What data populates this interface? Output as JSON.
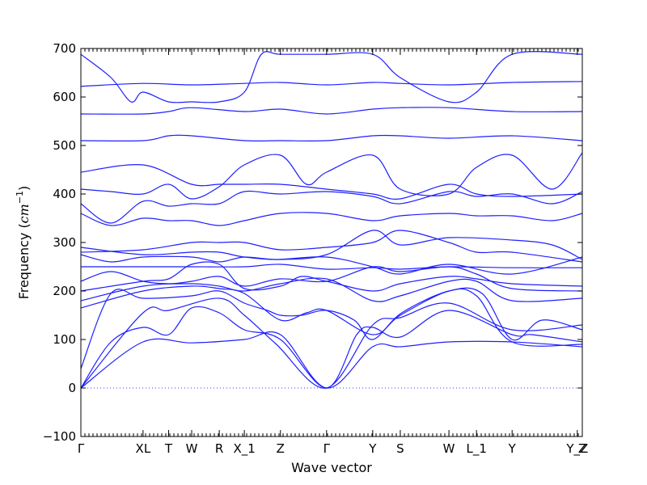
{
  "chart_data": {
    "type": "line",
    "title": "",
    "xlabel": "Wave vector",
    "ylabel": "Frequency ($cm^{-1}$)",
    "ylabel_text": "Frequency (",
    "ylabel_math": "cm",
    "ylabel_sup": "−1",
    "ylabel_close": ")",
    "ylim": [
      -100,
      700
    ],
    "yticks": [
      -100,
      0,
      100,
      200,
      300,
      400,
      500,
      600,
      700
    ],
    "xlim": [
      0,
      1
    ],
    "high_symmetry_points": [
      {
        "label": "Γ",
        "x": 0.0
      },
      {
        "label": "XL",
        "x": 0.124
      },
      {
        "label": "T",
        "x": 0.175
      },
      {
        "label": "W",
        "x": 0.221
      },
      {
        "label": "R",
        "x": 0.276
      },
      {
        "label": "X_1",
        "x": 0.326
      },
      {
        "label": "Z",
        "x": 0.398
      },
      {
        "label": "Γ",
        "x": 0.49
      },
      {
        "label": "Y",
        "x": 0.582
      },
      {
        "label": "S",
        "x": 0.637
      },
      {
        "label": "W",
        "x": 0.734
      },
      {
        "label": "L_1",
        "x": 0.789
      },
      {
        "label": "Y",
        "x": 0.86
      },
      {
        "label": "Y_Z",
        "x": 0.99
      },
      {
        "label": "Z",
        "x": 1.0
      }
    ],
    "grid": false,
    "legend": "none",
    "color": "#1f1fff",
    "zero_line": true,
    "series": [
      {
        "x": [
          0,
          0.124,
          0.221,
          0.326,
          0.398,
          0.49,
          0.582,
          0.637,
          0.734,
          0.86,
          1.0
        ],
        "values": [
          0,
          95,
          93,
          100,
          110,
          0,
          85,
          85,
          95,
          95,
          85
        ]
      },
      {
        "x": [
          0,
          0.06,
          0.124,
          0.175,
          0.221,
          0.276,
          0.326,
          0.398,
          0.49,
          0.55,
          0.582,
          0.637,
          0.734,
          0.86,
          0.9,
          1.0
        ],
        "values": [
          0,
          95,
          125,
          110,
          165,
          155,
          120,
          100,
          0,
          110,
          125,
          105,
          160,
          110,
          110,
          95
        ]
      },
      {
        "x": [
          0,
          0.124,
          0.175,
          0.276,
          0.326,
          0.39,
          0.49,
          0.582,
          0.637,
          0.734,
          0.86,
          1.0
        ],
        "values": [
          0,
          155,
          160,
          185,
          150,
          90,
          0,
          130,
          145,
          175,
          120,
          130
        ]
      },
      {
        "x": [
          0,
          0.06,
          0.124,
          0.221,
          0.276,
          0.326,
          0.372,
          0.398,
          0.44,
          0.49,
          0.545,
          0.582,
          0.64,
          0.734,
          0.8,
          0.86,
          0.92,
          1.0
        ],
        "values": [
          40,
          195,
          185,
          190,
          200,
          175,
          160,
          150,
          150,
          160,
          140,
          100,
          155,
          200,
          195,
          100,
          140,
          120
        ]
      },
      {
        "x": [
          0,
          0.124,
          0.221,
          0.276,
          0.326,
          0.398,
          0.45,
          0.49,
          0.582,
          0.637,
          0.734,
          0.789,
          0.86,
          1.0
        ],
        "values": [
          165,
          200,
          210,
          205,
          195,
          140,
          155,
          160,
          110,
          150,
          200,
          190,
          95,
          90
        ]
      },
      {
        "x": [
          0,
          0.124,
          0.221,
          0.276,
          0.326,
          0.398,
          0.49,
          0.582,
          0.637,
          0.734,
          0.789,
          0.86,
          1.0
        ],
        "values": [
          180,
          210,
          215,
          210,
          200,
          215,
          225,
          180,
          190,
          220,
          220,
          180,
          185
        ]
      },
      {
        "x": [
          0,
          0.124,
          0.175,
          0.221,
          0.276,
          0.326,
          0.398,
          0.44,
          0.49,
          0.582,
          0.637,
          0.734,
          0.789,
          0.86,
          1.0
        ],
        "values": [
          200,
          220,
          225,
          255,
          255,
          205,
          210,
          230,
          220,
          200,
          215,
          230,
          225,
          215,
          210
        ]
      },
      {
        "x": [
          0,
          0.06,
          0.124,
          0.175,
          0.221,
          0.276,
          0.326,
          0.398,
          0.49,
          0.582,
          0.637,
          0.734,
          0.789,
          0.86,
          1.0
        ],
        "values": [
          220,
          240,
          220,
          215,
          220,
          230,
          210,
          225,
          220,
          250,
          240,
          250,
          235,
          205,
          200
        ]
      },
      {
        "x": [
          0,
          0.124,
          0.221,
          0.326,
          0.398,
          0.49,
          0.582,
          0.637,
          0.734,
          0.86,
          1.0
        ],
        "values": [
          250,
          250,
          250,
          250,
          255,
          245,
          248,
          245,
          250,
          248,
          248
        ]
      },
      {
        "x": [
          0,
          0.06,
          0.124,
          0.221,
          0.276,
          0.326,
          0.39,
          0.49,
          0.582,
          0.637,
          0.734,
          0.86,
          1.0
        ],
        "values": [
          275,
          260,
          270,
          270,
          260,
          270,
          265,
          270,
          250,
          235,
          255,
          235,
          270
        ]
      },
      {
        "x": [
          0,
          0.124,
          0.221,
          0.276,
          0.326,
          0.398,
          0.49,
          0.582,
          0.637,
          0.734,
          0.86,
          0.94,
          1.0
        ],
        "values": [
          290,
          275,
          280,
          280,
          270,
          265,
          275,
          325,
          295,
          310,
          305,
          295,
          265
        ]
      },
      {
        "x": [
          0,
          0.124,
          0.221,
          0.276,
          0.326,
          0.398,
          0.49,
          0.582,
          0.637,
          0.734,
          0.789,
          0.86,
          1.0
        ],
        "values": [
          280,
          285,
          300,
          300,
          300,
          285,
          290,
          300,
          325,
          300,
          280,
          280,
          260
        ]
      },
      {
        "x": [
          0,
          0.06,
          0.124,
          0.175,
          0.221,
          0.276,
          0.326,
          0.398,
          0.49,
          0.582,
          0.637,
          0.734,
          0.789,
          0.86,
          0.94,
          1.0
        ],
        "values": [
          360,
          335,
          350,
          345,
          345,
          335,
          345,
          360,
          360,
          345,
          355,
          360,
          355,
          355,
          345,
          360
        ]
      },
      {
        "x": [
          0,
          0.06,
          0.124,
          0.175,
          0.221,
          0.276,
          0.326,
          0.398,
          0.49,
          0.582,
          0.637,
          0.734,
          0.789,
          0.86,
          0.94,
          1.0
        ],
        "values": [
          380,
          340,
          385,
          375,
          380,
          380,
          405,
          400,
          405,
          395,
          380,
          405,
          395,
          400,
          380,
          405
        ]
      },
      {
        "x": [
          0,
          0.06,
          0.124,
          0.175,
          0.221,
          0.276,
          0.326,
          0.398,
          0.45,
          0.49,
          0.582,
          0.637,
          0.734,
          0.789,
          0.86,
          0.94,
          1.0
        ],
        "values": [
          410,
          405,
          400,
          420,
          390,
          415,
          460,
          480,
          420,
          445,
          480,
          410,
          400,
          455,
          480,
          410,
          485
        ]
      },
      {
        "x": [
          0,
          0.124,
          0.221,
          0.276,
          0.326,
          0.398,
          0.49,
          0.582,
          0.637,
          0.734,
          0.789,
          0.86,
          1.0
        ],
        "values": [
          445,
          460,
          420,
          420,
          420,
          420,
          410,
          400,
          390,
          420,
          400,
          395,
          400
        ]
      },
      {
        "x": [
          0,
          0.124,
          0.175,
          0.221,
          0.326,
          0.398,
          0.49,
          0.582,
          0.637,
          0.734,
          0.86,
          1.0
        ],
        "values": [
          510,
          510,
          520,
          520,
          510,
          510,
          510,
          520,
          520,
          515,
          520,
          510
        ]
      },
      {
        "x": [
          0,
          0.124,
          0.175,
          0.221,
          0.326,
          0.398,
          0.49,
          0.582,
          0.637,
          0.734,
          0.86,
          1.0
        ],
        "values": [
          565,
          565,
          570,
          578,
          570,
          575,
          565,
          575,
          578,
          578,
          570,
          570
        ]
      },
      {
        "x": [
          0,
          0.124,
          0.221,
          0.326,
          0.398,
          0.49,
          0.582,
          0.637,
          0.734,
          0.86,
          1.0
        ],
        "values": [
          622,
          628,
          625,
          628,
          630,
          625,
          630,
          628,
          625,
          630,
          632
        ]
      },
      {
        "x": [
          0,
          0.06,
          0.1,
          0.124,
          0.175,
          0.221,
          0.276,
          0.326,
          0.36,
          0.398,
          0.49,
          0.582,
          0.637,
          0.734,
          0.789,
          0.86,
          1.0
        ],
        "values": [
          688,
          640,
          590,
          610,
          590,
          590,
          590,
          610,
          688,
          688,
          688,
          688,
          640,
          590,
          610,
          688,
          688
        ]
      }
    ]
  }
}
